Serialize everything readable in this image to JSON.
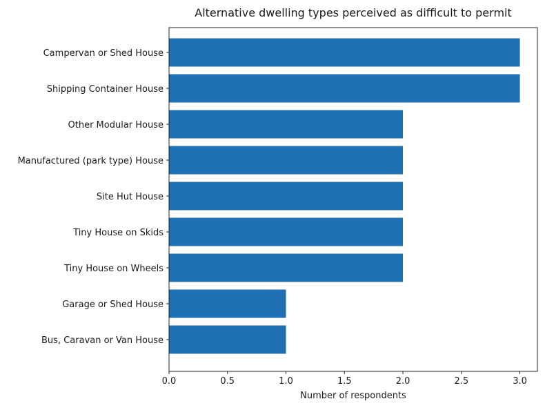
{
  "chart_data": {
    "type": "bar",
    "orientation": "horizontal",
    "title": "Alternative dwelling types perceived as difficult to permit",
    "xlabel": "Number of respondents",
    "ylabel": "",
    "categories": [
      "Campervan or Shed House",
      "Shipping Container House",
      "Other Modular House",
      "Manufactured (park type) House",
      "Site Hut House",
      "Tiny House on Skids",
      "Tiny House on Wheels",
      "Garage or Shed House",
      "Bus, Caravan or Van House"
    ],
    "values": [
      3,
      3,
      2,
      2,
      2,
      2,
      2,
      1,
      1
    ],
    "xlim": [
      0,
      3.15
    ],
    "xticks": [
      "0.0",
      "0.5",
      "1.0",
      "1.5",
      "2.0",
      "2.5",
      "3.0"
    ],
    "bar_color": "#1f6fb4",
    "grid": false
  }
}
